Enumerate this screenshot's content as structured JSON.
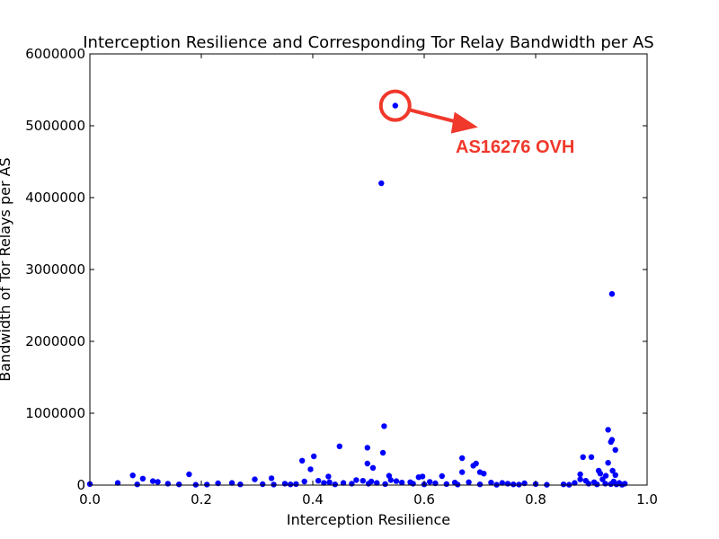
{
  "chart_data": {
    "type": "scatter",
    "title": "Interception Resilience and Corresponding Tor Relay Bandwidth per AS",
    "xlabel": "Interception Resilience",
    "ylabel": "Bandwidth of Tor Relays per AS",
    "xlim": [
      0.0,
      1.0
    ],
    "ylim": [
      0,
      6000000
    ],
    "xticks": [
      "0.0",
      "0.2",
      "0.4",
      "0.6",
      "0.8",
      "1.0"
    ],
    "yticks": [
      "0",
      "1000000",
      "2000000",
      "3000000",
      "4000000",
      "5000000",
      "6000000"
    ],
    "grid": false,
    "legend": "none",
    "point_color": "#0000ff",
    "annotation": {
      "text": "AS16276 OVH",
      "color": "#f0382b",
      "target": {
        "x": 0.548,
        "y": 5280000
      }
    },
    "points": [
      [
        0.548,
        5280000
      ],
      [
        0.523,
        4200000
      ],
      [
        0.937,
        2660000
      ],
      [
        0.528,
        820000
      ],
      [
        0.93,
        770000
      ],
      [
        0.937,
        630000
      ],
      [
        0.935,
        600000
      ],
      [
        0.448,
        540000
      ],
      [
        0.498,
        520000
      ],
      [
        0.943,
        490000
      ],
      [
        0.526,
        450000
      ],
      [
        0.402,
        400000
      ],
      [
        0.885,
        390000
      ],
      [
        0.9,
        390000
      ],
      [
        0.668,
        375000
      ],
      [
        0.381,
        340000
      ],
      [
        0.498,
        300000
      ],
      [
        0.693,
        300000
      ],
      [
        0.93,
        310000
      ],
      [
        0.688,
        270000
      ],
      [
        0.508,
        240000
      ],
      [
        0.396,
        220000
      ],
      [
        0.913,
        200000
      ],
      [
        0.938,
        200000
      ],
      [
        0.668,
        180000
      ],
      [
        0.7,
        180000
      ],
      [
        0.707,
        160000
      ],
      [
        0.178,
        150000
      ],
      [
        0.916,
        160000
      ],
      [
        0.077,
        135000
      ],
      [
        0.537,
        130000
      ],
      [
        0.632,
        125000
      ],
      [
        0.428,
        120000
      ],
      [
        0.88,
        150000
      ],
      [
        0.59,
        110000
      ],
      [
        0.597,
        120000
      ],
      [
        0.943,
        140000
      ],
      [
        0.926,
        130000
      ],
      [
        0.095,
        90000
      ],
      [
        0.326,
        95000
      ],
      [
        0.296,
        80000
      ],
      [
        0.113,
        55000
      ],
      [
        0.122,
        45000
      ],
      [
        0.41,
        60000
      ],
      [
        0.478,
        70000
      ],
      [
        0.55,
        55000
      ],
      [
        0.575,
        40000
      ],
      [
        0.655,
        35000
      ],
      [
        0.74,
        30000
      ],
      [
        0.78,
        25000
      ],
      [
        0.05,
        30000
      ],
      [
        0.14,
        20000
      ],
      [
        0.23,
        25000
      ],
      [
        0.255,
        30000
      ],
      [
        0.35,
        20000
      ],
      [
        0.37,
        15000
      ],
      [
        0.43,
        40000
      ],
      [
        0.455,
        30000
      ],
      [
        0.47,
        20000
      ],
      [
        0.49,
        60000
      ],
      [
        0.505,
        50000
      ],
      [
        0.515,
        30000
      ],
      [
        0.54,
        70000
      ],
      [
        0.56,
        35000
      ],
      [
        0.58,
        20000
      ],
      [
        0.61,
        45000
      ],
      [
        0.62,
        25000
      ],
      [
        0.64,
        15000
      ],
      [
        0.68,
        40000
      ],
      [
        0.72,
        35000
      ],
      [
        0.75,
        20000
      ],
      [
        0.76,
        10000
      ],
      [
        0.8,
        15000
      ],
      [
        0.85,
        10000
      ],
      [
        0.87,
        30000
      ],
      [
        0.89,
        60000
      ],
      [
        0.905,
        40000
      ],
      [
        0.92,
        80000
      ],
      [
        0.94,
        50000
      ],
      [
        0.95,
        30000
      ],
      [
        0.96,
        20000
      ],
      [
        0.0,
        15000
      ],
      [
        0.085,
        10000
      ],
      [
        0.16,
        10000
      ],
      [
        0.19,
        5000
      ],
      [
        0.21,
        8000
      ],
      [
        0.27,
        10000
      ],
      [
        0.31,
        12000
      ],
      [
        0.33,
        8000
      ],
      [
        0.36,
        10000
      ],
      [
        0.385,
        50000
      ],
      [
        0.42,
        30000
      ],
      [
        0.44,
        10000
      ],
      [
        0.5,
        20000
      ],
      [
        0.53,
        15000
      ],
      [
        0.6,
        10000
      ],
      [
        0.66,
        8000
      ],
      [
        0.7,
        10000
      ],
      [
        0.73,
        5000
      ],
      [
        0.77,
        8000
      ],
      [
        0.82,
        5000
      ],
      [
        0.86,
        5000
      ],
      [
        0.88,
        80000
      ],
      [
        0.895,
        20000
      ],
      [
        0.91,
        10000
      ],
      [
        0.925,
        20000
      ],
      [
        0.935,
        15000
      ],
      [
        0.945,
        10000
      ],
      [
        0.955,
        5000
      ]
    ]
  }
}
